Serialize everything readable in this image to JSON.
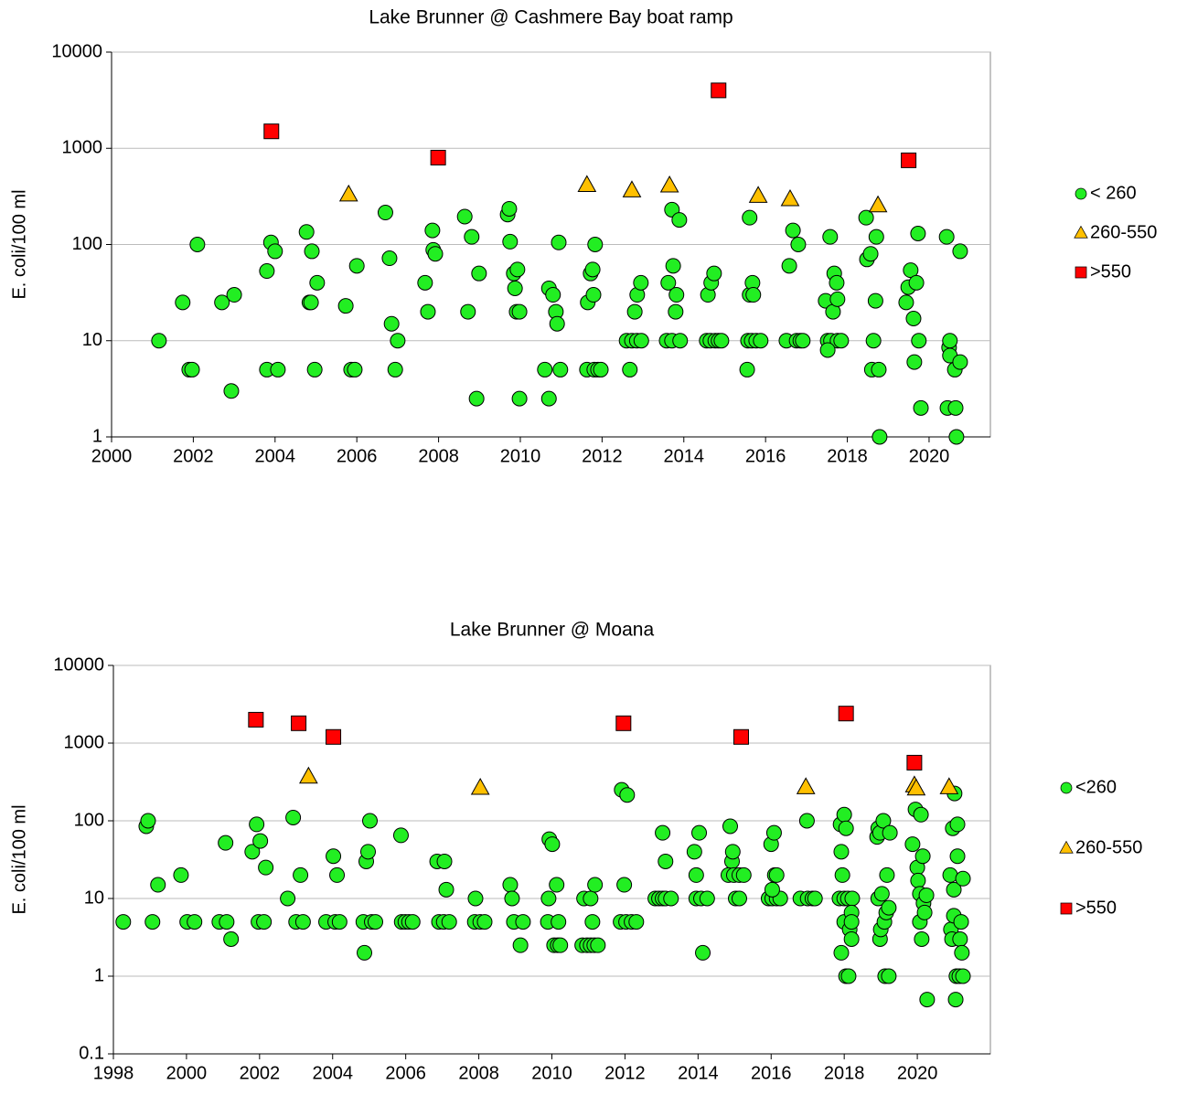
{
  "chart_data": [
    {
      "type": "scatter",
      "title": "Lake Brunner @ Cashmere Bay boat ramp",
      "y_label": "E. coli/100 ml",
      "xlim": [
        2000,
        2021.5
      ],
      "xticks": [
        2000,
        2002,
        2004,
        2006,
        2008,
        2010,
        2012,
        2014,
        2016,
        2018,
        2020
      ],
      "ylim": [
        1,
        10000
      ],
      "yticks": [
        1,
        10,
        100,
        1000,
        10000
      ],
      "yscale": "log",
      "grid": true,
      "legend": "right",
      "series": [
        {
          "name": "< 260",
          "color": "#22ee22",
          "marker": "circle",
          "x": [
            2001.16,
            2001.74,
            2001.9,
            2001.97,
            2002.1,
            2002.7,
            2002.93,
            2003.0,
            2003.8,
            2003.9,
            2004.0,
            2003.8,
            2004.07,
            2004.77,
            2004.84,
            2004.88,
            2004.9,
            2005.03,
            2004.97,
            2005.73,
            2005.86,
            2005.95,
            2006.0,
            2006.7,
            2006.8,
            2006.85,
            2007.0,
            2006.94,
            2007.67,
            2007.74,
            2007.85,
            2007.87,
            2007.92,
            2008.64,
            2008.72,
            2008.81,
            2008.93,
            2008.99,
            2009.69,
            2009.73,
            2009.75,
            2009.84,
            2009.93,
            2009.87,
            2009.91,
            2009.98,
            2009.98,
            2010.6,
            2010.7,
            2010.7,
            2010.8,
            2010.87,
            2010.9,
            2010.94,
            2010.98,
            2011.65,
            2011.72,
            2011.77,
            2011.79,
            2011.83,
            2011.63,
            2011.81,
            2011.9,
            2011.97,
            2012.6,
            2012.73,
            2012.85,
            2012.96,
            2012.8,
            2012.68,
            2012.86,
            2012.95,
            2013.58,
            2013.71,
            2013.91,
            2013.62,
            2013.71,
            2013.74,
            2013.8,
            2013.82,
            2013.89,
            2014.56,
            2014.65,
            2014.77,
            2014.85,
            2014.92,
            2014.59,
            2014.67,
            2014.74,
            2015.55,
            2015.57,
            2015.66,
            2015.77,
            2015.88,
            2015.61,
            2015.61,
            2015.68,
            2015.7,
            2016.51,
            2016.76,
            2016.85,
            2016.91,
            2016.58,
            2016.67,
            2016.8,
            2017.52,
            2017.6,
            2017.76,
            2017.85,
            2017.47,
            2017.52,
            2017.58,
            2017.65,
            2017.68,
            2017.74,
            2017.76,
            2018.46,
            2018.48,
            2018.57,
            2018.6,
            2018.64,
            2018.69,
            2018.71,
            2018.77,
            2018.79,
            2019.44,
            2019.49,
            2019.55,
            2019.62,
            2019.64,
            2019.69,
            2019.73,
            2019.75,
            2019.8,
            2020.43,
            2020.45,
            2020.49,
            2020.51,
            2020.51,
            2020.63,
            2020.65,
            2020.67,
            2020.76,
            2020.76
          ],
          "values": [
            10,
            25,
            5,
            5,
            100,
            25,
            3,
            30,
            53,
            105,
            85,
            5,
            5,
            135,
            25,
            25,
            85,
            40,
            5,
            23,
            5,
            5,
            60,
            215,
            72,
            15,
            10,
            5,
            40,
            20,
            140,
            88,
            80,
            195,
            20,
            120,
            2.5,
            50,
            205,
            235,
            107,
            50,
            55,
            35,
            20,
            20,
            2.5,
            5,
            2.5,
            35,
            30,
            20,
            15,
            105,
            5,
            25,
            50,
            55,
            30,
            100,
            5,
            5,
            5,
            5,
            10,
            10,
            10,
            10,
            20,
            5,
            30,
            40,
            10,
            10,
            10,
            40,
            230,
            60,
            20,
            30,
            180,
            10,
            10,
            10,
            10,
            10,
            30,
            40,
            50,
            5,
            10,
            10,
            10,
            10,
            190,
            30,
            40,
            30,
            10,
            10,
            10,
            10,
            60,
            140,
            100,
            10,
            10,
            10,
            10,
            26,
            8,
            120,
            20,
            50,
            40,
            27,
            190,
            70,
            80,
            5,
            10,
            26,
            120,
            5,
            1,
            25,
            36,
            54,
            17,
            6,
            40,
            130,
            10,
            2,
            120,
            2,
            8.5,
            10,
            7,
            5,
            2,
            1,
            85,
            6
          ]
        },
        {
          "name": "260-550",
          "color": "#ffc000",
          "marker": "triangle",
          "x": [
            2005.8,
            2011.63,
            2012.73,
            2013.65,
            2015.82,
            2016.6,
            2018.75
          ],
          "values": [
            330,
            415,
            365,
            410,
            320,
            295,
            255
          ]
        },
        {
          "name": ">550",
          "color": "#ff0000",
          "marker": "square",
          "x": [
            2003.91,
            2007.99,
            2014.85,
            2019.5
          ],
          "values": [
            1500,
            800,
            4000,
            750
          ]
        }
      ]
    },
    {
      "type": "scatter",
      "title": "Lake Brunner @ Moana",
      "y_label": "E. coli/100 ml",
      "xlim": [
        1998,
        2022
      ],
      "xticks": [
        1998,
        2000,
        2002,
        2004,
        2006,
        2008,
        2010,
        2012,
        2014,
        2016,
        2018,
        2020
      ],
      "ylim": [
        0.1,
        10000
      ],
      "yticks": [
        0.1,
        1,
        10,
        100,
        1000,
        10000
      ],
      "yscale": "log",
      "grid": true,
      "legend": "right",
      "series": [
        {
          "name": "<260",
          "color": "#22ee22",
          "marker": "circle",
          "x": [
            1998.27,
            1998.9,
            1998.95,
            1999.07,
            1999.22,
            1999.85,
            2000.02,
            2000.22,
            2000.9,
            2001.1,
            2001.07,
            2001.22,
            2001.8,
            2001.92,
            2001.97,
            2002.02,
            2002.12,
            2002.17,
            2002.77,
            2002.92,
            2003.0,
            2003.12,
            2003.19,
            2003.82,
            2004.02,
            2004.07,
            2004.12,
            2004.19,
            2004.87,
            2004.84,
            2004.92,
            2004.97,
            2005.02,
            2005.07,
            2005.17,
            2005.87,
            2005.89,
            2005.99,
            2006.09,
            2006.19,
            2006.86,
            2006.91,
            2007.04,
            2007.19,
            2007.06,
            2007.11,
            2007.91,
            2007.89,
            2008.04,
            2008.16,
            2008.86,
            2008.91,
            2008.96,
            2009.21,
            2009.14,
            2009.89,
            2009.91,
            2009.93,
            2010.01,
            2010.06,
            2010.16,
            2010.23,
            2010.13,
            2010.18,
            2010.83,
            2010.96,
            2011.06,
            2011.16,
            2011.26,
            2010.88,
            2011.06,
            2011.11,
            2011.18,
            2011.91,
            2011.98,
            2012.06,
            2011.88,
            2012.03,
            2012.18,
            2012.31,
            2012.83,
            2012.93,
            2013.03,
            2013.11,
            2013.26,
            2013.03,
            2013.11,
            2013.9,
            2013.95,
            2014.03,
            2013.95,
            2014.08,
            2014.25,
            2014.13,
            2014.88,
            2014.93,
            2014.83,
            2014.98,
            2015.13,
            2015.25,
            2015.03,
            2015.13,
            2014.95,
            2015.93,
            2016.03,
            2016.15,
            2016.25,
            2016.03,
            2016.0,
            2016.08,
            2016.1,
            2016.15,
            2016.8,
            2017.0,
            2017.13,
            2017.2,
            2016.98,
            2017.87,
            2018.0,
            2018.1,
            2018.22,
            2017.9,
            2018.0,
            2018.05,
            2017.92,
            2017.95,
            2017.92,
            2018.0,
            2018.05,
            2018.12,
            2018.15,
            2018.2,
            2018.2,
            2018.2,
            2018.9,
            2018.93,
            2018.98,
            2019.07,
            2018.93,
            2018.98,
            2019.0,
            2019.03,
            2019.1,
            2019.12,
            2019.22,
            2019.17,
            2019.15,
            2019.25,
            2019.22,
            2019.87,
            2019.95,
            2020.0,
            2020.02,
            2020.07,
            2020.1,
            2020.07,
            2020.12,
            2020.15,
            2020.17,
            2020.2,
            2020.27,
            2020.25,
            2020.9,
            2020.92,
            2020.95,
            2020.97,
            2021.0,
            2021.02,
            2021.0,
            2021.05,
            2021.07,
            2021.15,
            2021.25,
            2021.1,
            2021.1,
            2021.17,
            2021.2,
            2021.22,
            2021.25
          ],
          "values": [
            5,
            85,
            100,
            5,
            15,
            20,
            5,
            5,
            5,
            5,
            52,
            3,
            40,
            90,
            5,
            55,
            5,
            25,
            10,
            110,
            5,
            20,
            5,
            5,
            35,
            5,
            20,
            5,
            2,
            5,
            30,
            40,
            100,
            5,
            5,
            65,
            5,
            5,
            5,
            5,
            30,
            5,
            5,
            5,
            30,
            13,
            10,
            5,
            5,
            5,
            15,
            10,
            5,
            5,
            2.5,
            5,
            10,
            58,
            50,
            2.5,
            2.5,
            2.5,
            15,
            5,
            2.5,
            2.5,
            2.5,
            2.5,
            2.5,
            10,
            10,
            5,
            15,
            250,
            15,
            215,
            5,
            5,
            5,
            5,
            10,
            10,
            10,
            10,
            10,
            70,
            30,
            40,
            20,
            70,
            10,
            10,
            10,
            2,
            85,
            30,
            20,
            20,
            20,
            20,
            10,
            10,
            40,
            10,
            10,
            10,
            10,
            13,
            50,
            70,
            20,
            20,
            10,
            10,
            10,
            10,
            100,
            10,
            10,
            10,
            10,
            90,
            120,
            80,
            40,
            20,
            2,
            5,
            1,
            1,
            4,
            3,
            6.6,
            5,
            62,
            80,
            70,
            100,
            10,
            3,
            4,
            11.5,
            5,
            1,
            1,
            20,
            6.6,
            70,
            7.6,
            50,
            140,
            25,
            17,
            11.5,
            120,
            5,
            3,
            35,
            8.7,
            6.6,
            0.5,
            11,
            20,
            4,
            3,
            80,
            6,
            225,
            13,
            0.5,
            1,
            1,
            1,
            90,
            35,
            3,
            5,
            2,
            18
          ]
        },
        {
          "name": "260-550",
          "color": "#ffc000",
          "marker": "triangle",
          "x": [
            2003.34,
            2008.04,
            2016.95,
            2019.92,
            2019.97,
            2020.87
          ],
          "values": [
            370,
            265,
            270,
            285,
            260,
            270
          ]
        },
        {
          "name": ">550",
          "color": "#ff0000",
          "marker": "square",
          "x": [
            2001.9,
            2003.07,
            2004.02,
            2011.96,
            2015.18,
            2018.05,
            2019.92
          ],
          "values": [
            2000,
            1800,
            1200,
            1800,
            1200,
            2400,
            560
          ]
        }
      ]
    }
  ]
}
